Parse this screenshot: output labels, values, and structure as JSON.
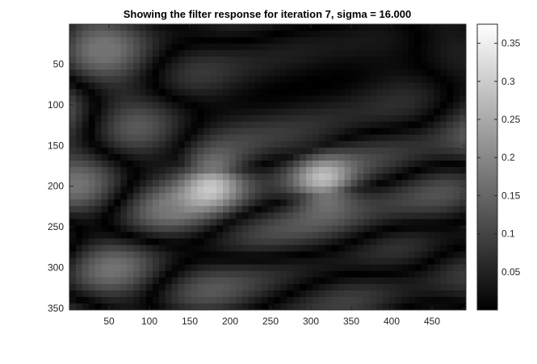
{
  "chart_data": {
    "type": "heatmap",
    "title": "Showing the filter response for iteration 7, sigma = 16.000",
    "colormap": "gray",
    "x_ticks": [
      "50",
      "100",
      "150",
      "200",
      "250",
      "300",
      "350",
      "400",
      "450"
    ],
    "y_ticks": [
      "50",
      "100",
      "150",
      "200",
      "250",
      "300",
      "350"
    ],
    "xlim": [
      1,
      492
    ],
    "ylim": [
      1,
      352
    ],
    "y_direction": "reverse",
    "colorbar": {
      "position": "right",
      "range": [
        0.0,
        0.375
      ],
      "ticks": [
        "0.05",
        "0.1",
        "0.15",
        "0.2",
        "0.25",
        "0.3",
        "0.35"
      ]
    },
    "colors": {
      "axis": "#262626",
      "background": "#ffffff"
    }
  }
}
